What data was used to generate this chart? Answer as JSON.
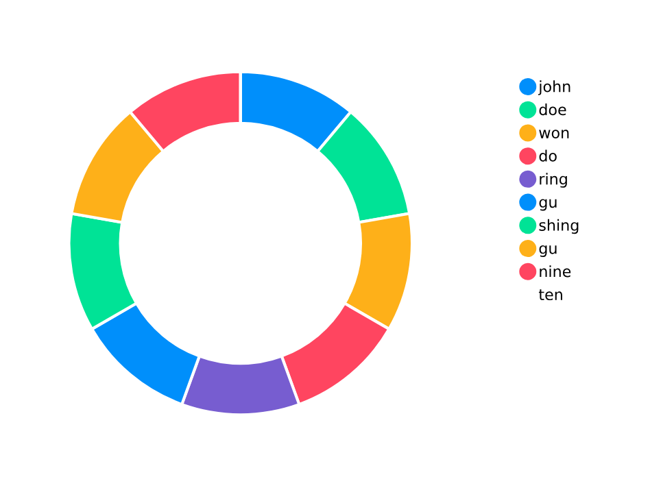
{
  "chart_data": {
    "type": "donut",
    "categories": [
      "john",
      "doe",
      "won",
      "do",
      "ring",
      "gu",
      "shing",
      "gu",
      "nine",
      "ten"
    ],
    "values": [
      11.11,
      11.11,
      11.11,
      11.11,
      11.11,
      11.11,
      11.11,
      11.11,
      11.11,
      0
    ],
    "colors": [
      "#008ffb",
      "#00e396",
      "#feb019",
      "#ff4560",
      "#775dd0",
      "#008ffb",
      "#00e396",
      "#feb019",
      "#ff4560",
      "#ffffff"
    ],
    "legend": "right"
  }
}
